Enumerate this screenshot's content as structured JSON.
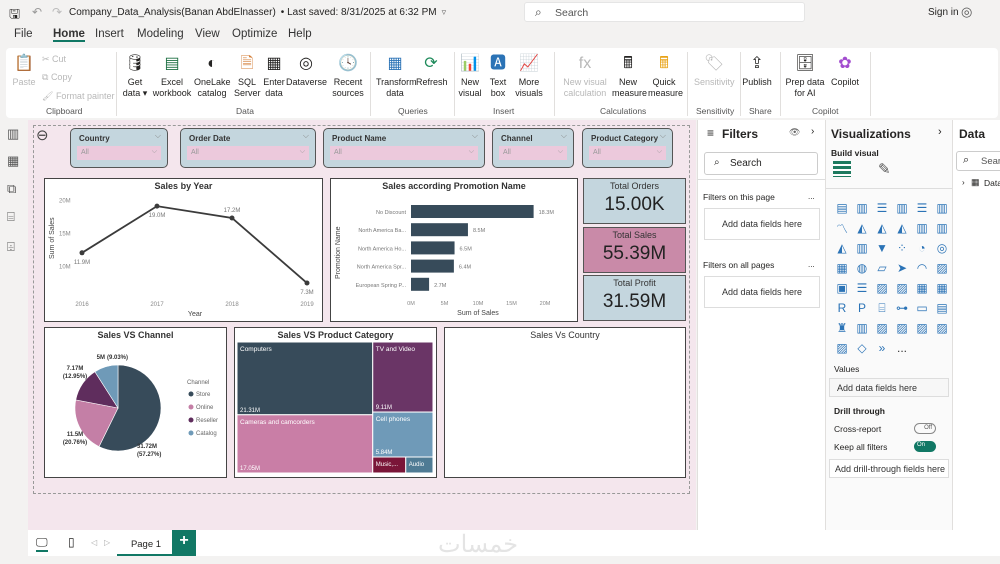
{
  "titlebar": {
    "title": "Company_Data_Analysis(Banan AbdElnasser)",
    "saved": "• Last saved: 8/31/2025 at 6:32 PM",
    "search_placeholder": "Search",
    "sign_in": "Sign in"
  },
  "menu": [
    "File",
    "Home",
    "Insert",
    "Modeling",
    "View",
    "Optimize",
    "Help"
  ],
  "ribbon": {
    "clipboard": {
      "paste": "Paste",
      "cut": "Cut",
      "copy": "Copy",
      "format_painter": "Format painter",
      "group": "Clipboard"
    },
    "data": {
      "get_data": "Get data",
      "excel": "Excel workbook",
      "onelake": "OneLake catalog",
      "sql": "SQL Server",
      "enter": "Enter data",
      "dataverse": "Dataverse",
      "recent": "Recent sources",
      "group": "Data"
    },
    "queries": {
      "transform": "Transform data",
      "refresh": "Refresh",
      "group": "Queries"
    },
    "insert": {
      "new_visual": "New visual",
      "text_box": "Text box",
      "more_visuals": "More visuals",
      "group": "Insert"
    },
    "calculations": {
      "new_visual_calc": "New visual calculation",
      "new_measure": "New measure",
      "quick_measure": "Quick measure",
      "group": "Calculations"
    },
    "sensitivity": {
      "label": "Sensitivity",
      "group": "Sensitivity"
    },
    "share": {
      "publish": "Publish",
      "group": "Share"
    },
    "copilot": {
      "prep": "Prep data for AI",
      "copilot": "Copilot",
      "group": "Copilot"
    }
  },
  "slicers": [
    {
      "label": "Country",
      "value": "All"
    },
    {
      "label": "Order Date",
      "value": "All"
    },
    {
      "label": "Product Name",
      "value": "All"
    },
    {
      "label": "Channel",
      "value": "All"
    },
    {
      "label": "Product Category",
      "value": "All"
    }
  ],
  "kpis": [
    {
      "title": "Total Orders",
      "value": "15.00K",
      "color": "#c4d6de"
    },
    {
      "title": "Total Sales",
      "value": "55.39M",
      "color": "#c98aa8"
    },
    {
      "title": "Total Profit",
      "value": "31.59M",
      "color": "#c4d6de"
    }
  ],
  "chart_data": [
    {
      "type": "line",
      "title": "Sales by Year",
      "xlabel": "Year",
      "ylabel": "Sum of Sales",
      "x": [
        "2016",
        "2017",
        "2018",
        "2019"
      ],
      "values": [
        11.9,
        19.0,
        17.2,
        7.3
      ],
      "data_labels": [
        "11.9M",
        "19.0M",
        "17.2M",
        "7.3M"
      ],
      "yticks": [
        "10M",
        "15M",
        "20M"
      ],
      "ylim": [
        7,
        21
      ],
      "color": "#3b3b3b"
    },
    {
      "type": "bar",
      "title": "Sales according Promotion Name",
      "xlabel": "Sum of Sales",
      "ylabel": "Promotion Name",
      "categories": [
        "No Discount",
        "North America Ba...",
        "North America Ho...",
        "North America Spr...",
        "European Spring P..."
      ],
      "values": [
        18.3,
        8.5,
        6.5,
        6.4,
        2.7
      ],
      "data_labels": [
        "18.3M",
        "8.5M",
        "6.5M",
        "6.4M",
        "2.7M"
      ],
      "xticks": [
        "0M",
        "5M",
        "10M",
        "15M",
        "20M"
      ],
      "xlim": [
        0,
        20
      ],
      "color": "#374b5a"
    },
    {
      "type": "pie",
      "title": "Sales VS Channel",
      "legend_title": "Channel",
      "legend_position": "right",
      "series": [
        {
          "name": "Store",
          "value": 31.72,
          "label": "31.72M",
          "pct": "(57.27%)",
          "color": "#374b5a"
        },
        {
          "name": "Online",
          "value": 11.5,
          "label": "11.5M",
          "pct": "(20.76%)",
          "color": "#c47fa6"
        },
        {
          "name": "Reseller",
          "value": 7.17,
          "label": "7.17M",
          "pct": "(12.95%)",
          "color": "#5f2d5d"
        },
        {
          "name": "Catalog",
          "value": 5,
          "label": "5M",
          "pct": "(9.03%)",
          "color": "#6f9ab8"
        }
      ]
    },
    {
      "type": "treemap",
      "title": "Sales VS Product Category",
      "series": [
        {
          "name": "Computers",
          "value": 21.31,
          "label": "21.31M",
          "color": "#374b5a"
        },
        {
          "name": "Cameras and camcorders",
          "value": 17.05,
          "label": "17.05M",
          "color": "#c97ea6"
        },
        {
          "name": "TV and Video",
          "value": 9.11,
          "label": "9.11M",
          "color": "#6a3566"
        },
        {
          "name": "Cell phones",
          "value": 5.84,
          "label": "5.84M",
          "color": "#6f9ab8"
        },
        {
          "name": "Music,...",
          "value": 1.14,
          "label": "",
          "color": "#7a1538"
        },
        {
          "name": "Audio",
          "value": 0.94,
          "label": "",
          "color": "#4f7b94"
        }
      ]
    },
    {
      "type": "map",
      "title": "Sales Vs Country"
    }
  ],
  "filters": {
    "title": "Filters",
    "search": "Search",
    "on_page": "Filters on this page",
    "on_all": "Filters on all pages",
    "add": "Add data fields here",
    "more": "..."
  },
  "visualizations": {
    "title": "Visualizations",
    "build": "Build visual",
    "values": "Values",
    "add_values": "Add data fields here",
    "drill": "Drill through",
    "cross": "Cross-report",
    "cross_state": "Off",
    "keep": "Keep all filters",
    "keep_state": "On",
    "add_drill": "Add drill-through fields here",
    "more": "..."
  },
  "data_pane": {
    "title": "Data",
    "search": "Search",
    "table": "Data"
  },
  "pages": {
    "tab": "Page 1",
    "add": "+"
  },
  "watermark": "خمسات"
}
